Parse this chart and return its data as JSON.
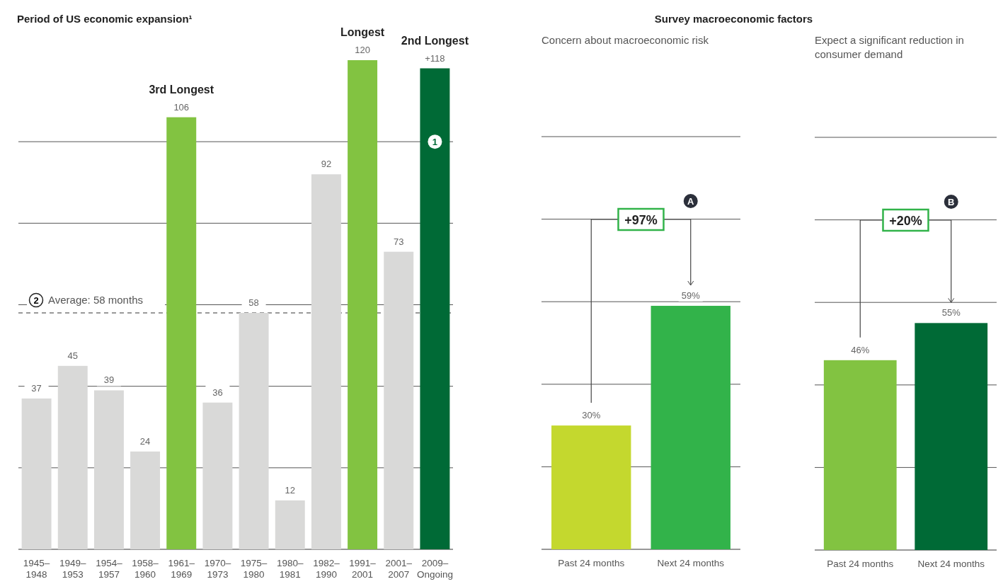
{
  "chart_data": [
    {
      "type": "bar",
      "title": "Period of US economic expansion¹",
      "categories": [
        "1945–1948",
        "1949–1953",
        "1954–1957",
        "1958–1960",
        "1961–1969",
        "1970–1973",
        "1975–1980",
        "1980–1981",
        "1982–1990",
        "1991–2001",
        "2001–2007",
        "2009–Ongoing"
      ],
      "values": [
        37,
        45,
        39,
        24,
        106,
        36,
        58,
        12,
        92,
        120,
        73,
        118
      ],
      "colors": [
        "#d9d9d8",
        "#d9d9d8",
        "#d9d9d8",
        "#d9d9d8",
        "#82c341",
        "#d9d9d8",
        "#d9d9d8",
        "#d9d9d8",
        "#d9d9d8",
        "#82c341",
        "#d9d9d8",
        "#006a36"
      ],
      "value_labels": [
        "37",
        "45",
        "39",
        "24",
        "106",
        "36",
        "58",
        "12",
        "92",
        "120",
        "73",
        "+118"
      ],
      "ylim": [
        0,
        120
      ],
      "yticks": [
        {
          "value": 0,
          "label": null
        },
        {
          "value": 20,
          "label": null
        },
        {
          "value": 40,
          "label": null
        },
        {
          "value": 60,
          "label": null
        },
        {
          "value": 80,
          "label": null
        },
        {
          "value": 100,
          "label": null
        }
      ],
      "grid": "y",
      "ref_lines": [
        {
          "axis": "y",
          "value": 58,
          "label": "Average: 58 months",
          "line_style": "dashed",
          "color": "#333333"
        }
      ],
      "annotations": [
        {
          "text": "3rd Longest",
          "x": "1961–1969",
          "y": 106
        },
        {
          "text": "Longest",
          "x": "1991–2001",
          "y": 120
        },
        {
          "text": "2nd Longest",
          "x": "2009–Ongoing",
          "y": 118
        },
        {
          "text": "1",
          "x": "2009–Ongoing",
          "y": 100
        },
        "2"
      ]
    },
    {
      "type": "bar",
      "title": "Survey macroeconomic factors",
      "subtitle": "Concern about macroeconomic risk",
      "categories": [
        "Past 24 months",
        "Next 24 months"
      ],
      "values": [
        30,
        59
      ],
      "colors": [
        "#c4d82e",
        "#32b34a"
      ],
      "value_labels": [
        "30%",
        "59%"
      ],
      "ylim": [
        0,
        100
      ],
      "yticks": [
        {
          "value": 0,
          "label": null
        },
        {
          "value": 20,
          "label": null
        },
        {
          "value": 40,
          "label": null
        },
        {
          "value": 60,
          "label": null
        },
        {
          "value": 80,
          "label": null
        },
        {
          "value": 100,
          "label": null
        }
      ],
      "grid": "y",
      "annotations": [
        "+97%",
        "A"
      ]
    },
    {
      "type": "bar",
      "subtitle": "Expect a significant reduction in consumer demand",
      "categories": [
        "Past 24 months",
        "Next 24 months"
      ],
      "values": [
        46,
        55
      ],
      "colors": [
        "#82c341",
        "#006a36"
      ],
      "value_labels": [
        "46%",
        "55%"
      ],
      "ylim": [
        0,
        100
      ],
      "yticks": [
        {
          "value": 0,
          "label": null
        },
        {
          "value": 20,
          "label": null
        },
        {
          "value": 40,
          "label": null
        },
        {
          "value": 60,
          "label": null
        },
        {
          "value": 80,
          "label": null
        },
        {
          "value": 100,
          "label": null
        }
      ],
      "grid": "y",
      "annotations": [
        "+20%",
        "B"
      ]
    }
  ]
}
